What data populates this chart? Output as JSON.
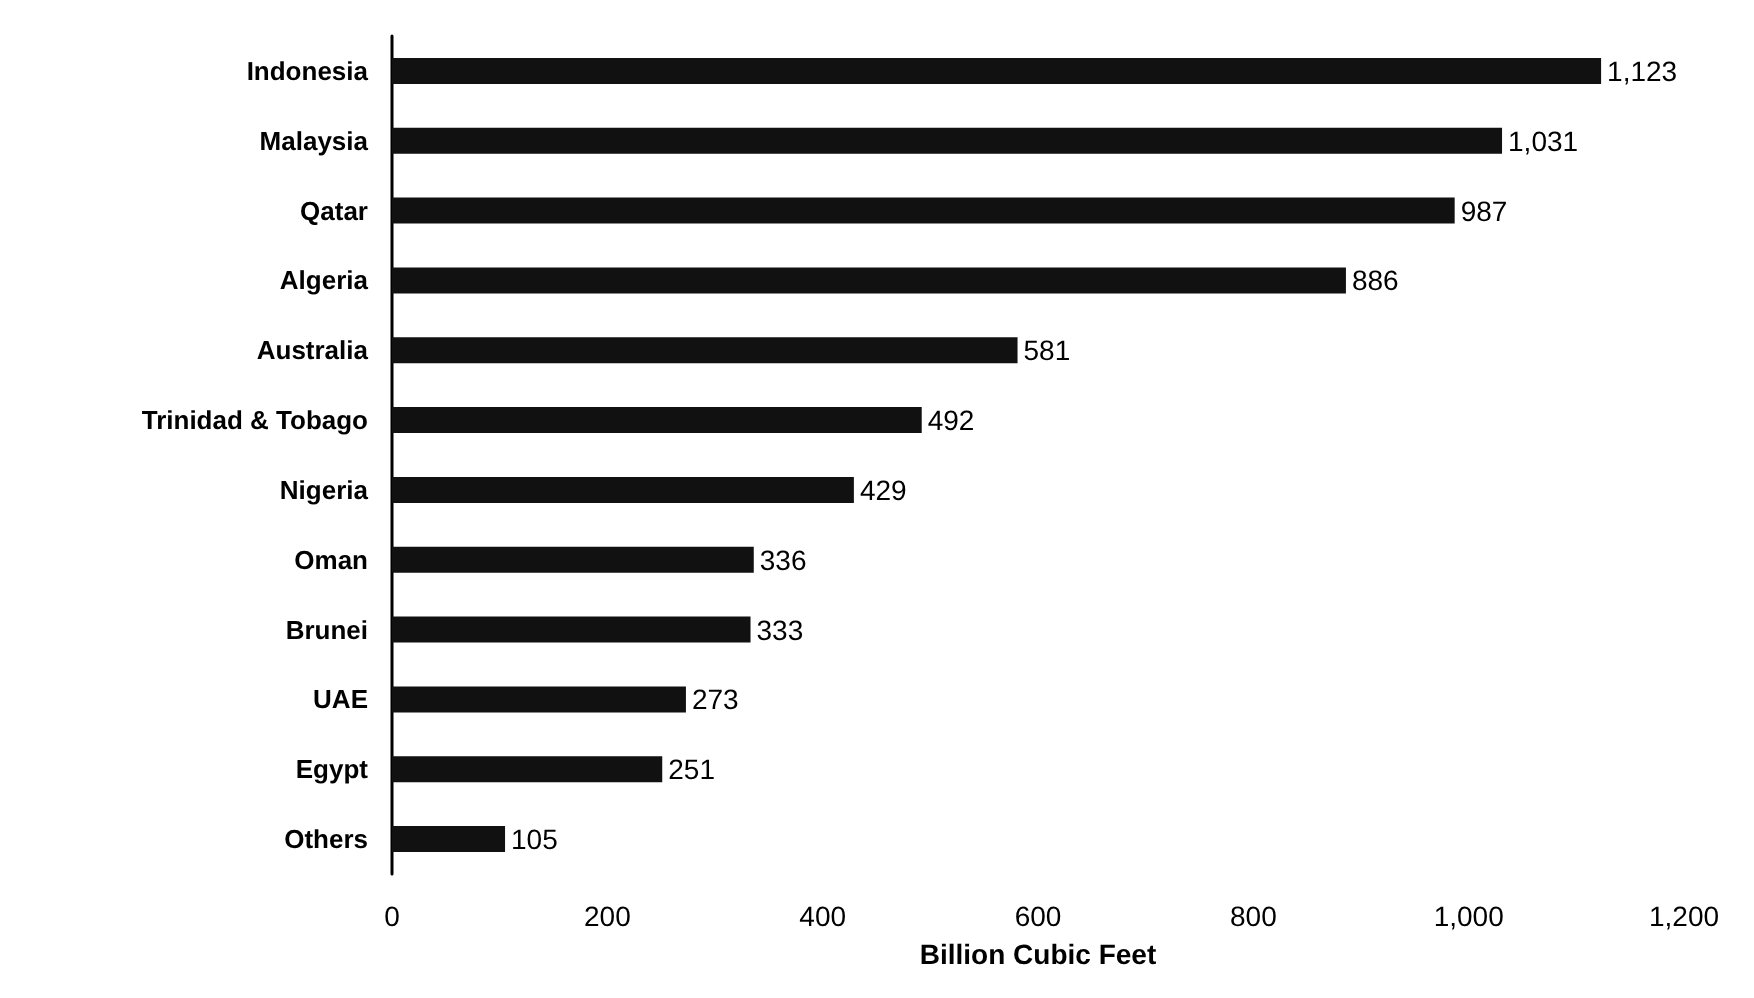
{
  "chart_data": {
    "type": "bar",
    "orientation": "horizontal",
    "xlabel": "Billion Cubic Feet",
    "categories": [
      "Indonesia",
      "Malaysia",
      "Qatar",
      "Algeria",
      "Australia",
      "Trinidad & Tobago",
      "Nigeria",
      "Oman",
      "Brunei",
      "UAE",
      "Egypt",
      "Others"
    ],
    "values": [
      1123,
      1031,
      987,
      886,
      581,
      492,
      429,
      336,
      333,
      273,
      251,
      105
    ],
    "value_labels": [
      "1,123",
      "1,031",
      "987",
      "886",
      "581",
      "492",
      "429",
      "336",
      "333",
      "273",
      "251",
      "105"
    ],
    "color": "#111111",
    "xlim": [
      0,
      1200
    ],
    "xticks": [
      0,
      200,
      400,
      600,
      800,
      {
        "value": 1000,
        "label": "1,000"
      },
      {
        "value": 1200,
        "label": "1,200"
      }
    ],
    "grid": false
  }
}
